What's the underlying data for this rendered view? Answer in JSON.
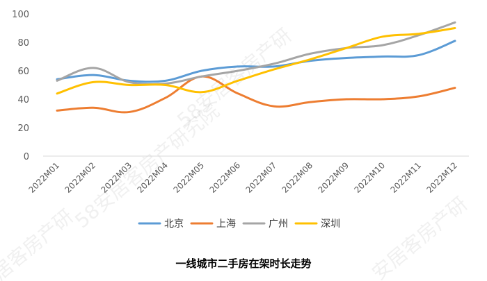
{
  "chart_data": {
    "type": "line",
    "title": "一线城市二手房在架时长走势",
    "categories": [
      "2022M01",
      "2022M02",
      "2022M03",
      "2022M04",
      "2022M05",
      "2022M06",
      "2022M07",
      "2022M08",
      "2022M09",
      "2022M10",
      "2022M11",
      "2022M12"
    ],
    "ylim": [
      0,
      100
    ],
    "yticks": [
      0,
      20,
      40,
      60,
      80,
      100
    ],
    "grid": false,
    "legend_position": "bottom",
    "series": [
      {
        "name": "北京",
        "color": "#5B9BD5",
        "values": [
          54,
          57,
          53,
          53,
          60,
          63,
          63,
          67,
          69,
          70,
          71,
          81
        ]
      },
      {
        "name": "上海",
        "color": "#ED7D31",
        "values": [
          32,
          34,
          31,
          41,
          56,
          44,
          35,
          38,
          40,
          40,
          42,
          48
        ]
      },
      {
        "name": "广州",
        "color": "#A5A5A5",
        "values": [
          53,
          62,
          52,
          51,
          56,
          60,
          65,
          72,
          76,
          78,
          85,
          94
        ]
      },
      {
        "name": "深圳",
        "color": "#FFC000",
        "values": [
          44,
          52,
          50,
          50,
          45,
          53,
          61,
          68,
          76,
          84,
          86,
          90
        ]
      }
    ]
  },
  "watermark": {
    "text1": "58安居客房产研",
    "text2": "58安居客房产研究院",
    "text3": "居客房产研",
    "text4": "安居客房产研"
  }
}
